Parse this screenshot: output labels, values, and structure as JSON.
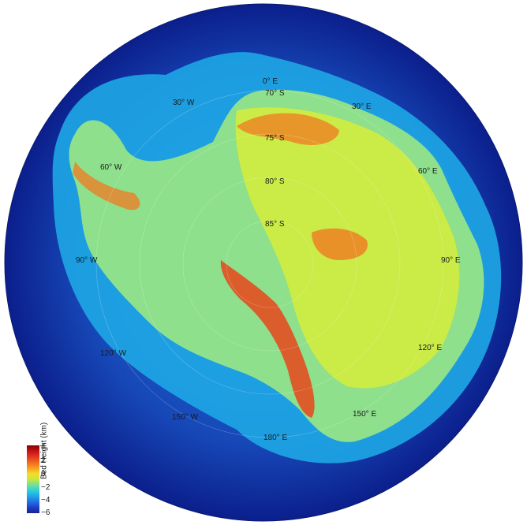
{
  "longitude_labels": {
    "e0": "0° E",
    "e30": "30° E",
    "e60": "60° E",
    "e90": "90° E",
    "e120": "120° E",
    "e150": "150° E",
    "e180": "180° E",
    "w30": "30° W",
    "w60": "60° W",
    "w90": "90° W",
    "w120": "120° W",
    "w150": "150° W"
  },
  "latitude_labels": {
    "s70": "70° S",
    "s75": "75° S",
    "s80": "80° S",
    "s85": "85° S"
  },
  "colorbar": {
    "title": "Bed Height (km)",
    "ticks": [
      "4",
      "2",
      "0",
      "−2",
      "−4",
      "−6"
    ],
    "range_km": [
      -6,
      4.5
    ]
  },
  "colors": {
    "deep_ocean": "#0b1f8c",
    "shelf": "#1ea7e6",
    "land_low": "#8ee08c",
    "land_mid": "#d6ec3a",
    "land_high": "#e8451a"
  }
}
